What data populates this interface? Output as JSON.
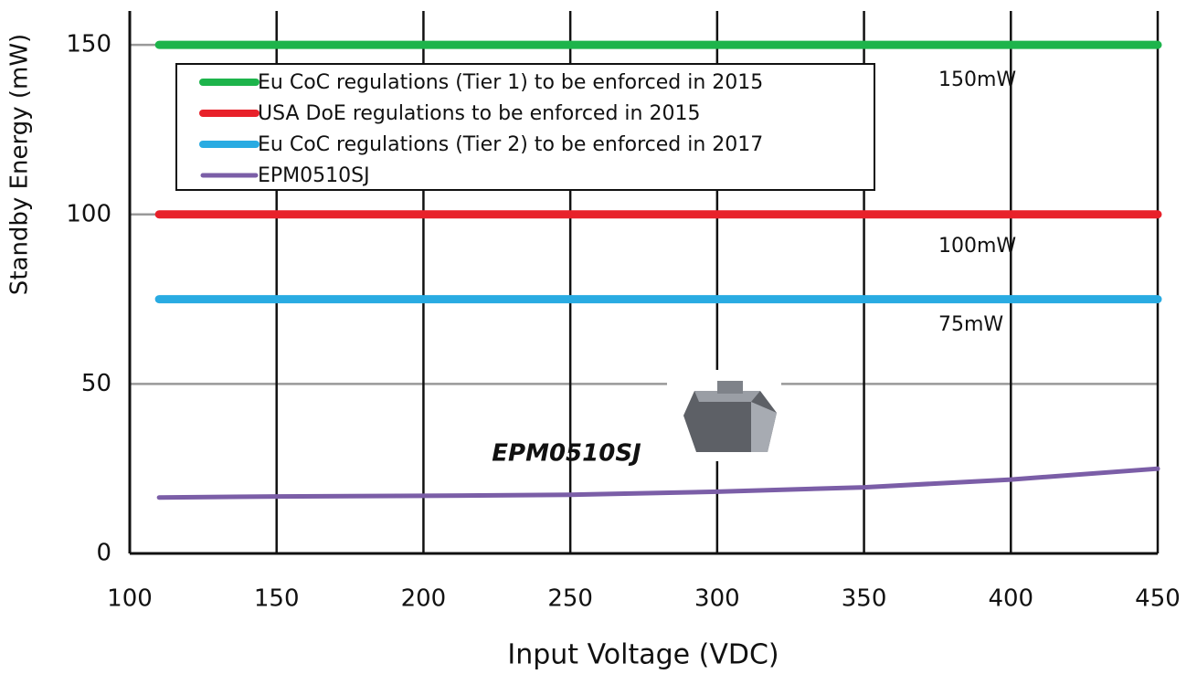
{
  "chart_data": {
    "type": "line",
    "x_label": "Input Voltage (VDC)",
    "y_label": "Standby Energy (mW)",
    "x": [
      110,
      150,
      200,
      250,
      300,
      350,
      400,
      450
    ],
    "series": [
      {
        "name": "Eu CoC regulations (Tier 1) to be enforced in 2015",
        "color": "#1db44b",
        "values": [
          150,
          150,
          150,
          150,
          150,
          150,
          150,
          150
        ]
      },
      {
        "name": "USA DoE regulations to be enforced in 2015",
        "color": "#e8212a",
        "values": [
          100,
          100,
          100,
          100,
          100,
          100,
          100,
          100
        ]
      },
      {
        "name": "Eu CoC regulations (Tier 2) to be enforced in 2017",
        "color": "#29abe2",
        "values": [
          75,
          75,
          75,
          75,
          75,
          75,
          75,
          75
        ]
      },
      {
        "name": "EPM0510SJ",
        "color": "#7b5ea7",
        "values": [
          16.5,
          16.8,
          17,
          17.3,
          18.2,
          19.5,
          21.8,
          25
        ]
      }
    ],
    "annotations": [
      "150mW",
      "100mW",
      "75mW",
      "EPM0510SJ"
    ],
    "xlim": [
      100,
      450
    ],
    "xticks": [
      100,
      150,
      200,
      250,
      300,
      350,
      400,
      450
    ],
    "ylim": [
      0,
      160
    ],
    "yticks": [
      0,
      50,
      100,
      150
    ],
    "grid": true,
    "legend": "upper left"
  }
}
